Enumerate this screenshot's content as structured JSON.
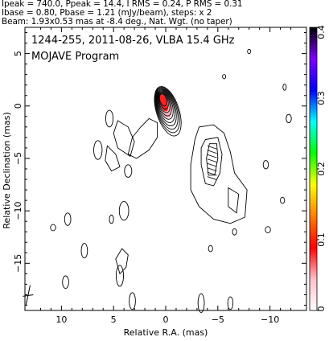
{
  "header": {
    "line1": "Ipeak = 740.0, Ppeak = 14.4, I RMS = 0.24, P RMS = 0.31",
    "line2": "Ibase = 0.80, Pbase = 1.21 (mJy/beam), steps: x 2",
    "line3": "Beam: 1.93x0.53 mas at -8.4 deg., Nat. Wgt. (no taper)"
  },
  "chart_data": {
    "type": "heatmap",
    "title": "1244-255, 2011-08-26, VLBA 15.4 GHz",
    "subtitle": "MOJAVE Program",
    "xlabel": "Relative R.A. (mas)",
    "ylabel": "Relative Declination (mas)",
    "xlim": [
      13.5,
      -13.5
    ],
    "ylim": [
      -19.5,
      7.5
    ],
    "xticks": [
      10,
      5,
      0,
      -5,
      -10
    ],
    "yticks": [
      5,
      0,
      -5,
      -10,
      -15
    ],
    "colorbar": {
      "min": 0,
      "max": 0.4,
      "ticks": [
        0,
        0.1,
        0.2,
        0.3,
        0.4
      ],
      "colors": [
        "#ffffff",
        "#ffc0cb",
        "#ff0000",
        "#ff8000",
        "#ffff00",
        "#00ff00",
        "#00ffff",
        "#0000ff",
        "#8000ff",
        "#000000"
      ]
    },
    "core": {
      "x": 0,
      "y": 0,
      "contours": [
        0.8,
        1.6,
        3.2,
        6.4,
        12.8,
        25.6,
        51.2,
        102.4,
        204.8,
        409.6
      ]
    },
    "components": [
      {
        "x": -4.5,
        "y": -4.0,
        "label": "polarization vectors"
      }
    ]
  }
}
